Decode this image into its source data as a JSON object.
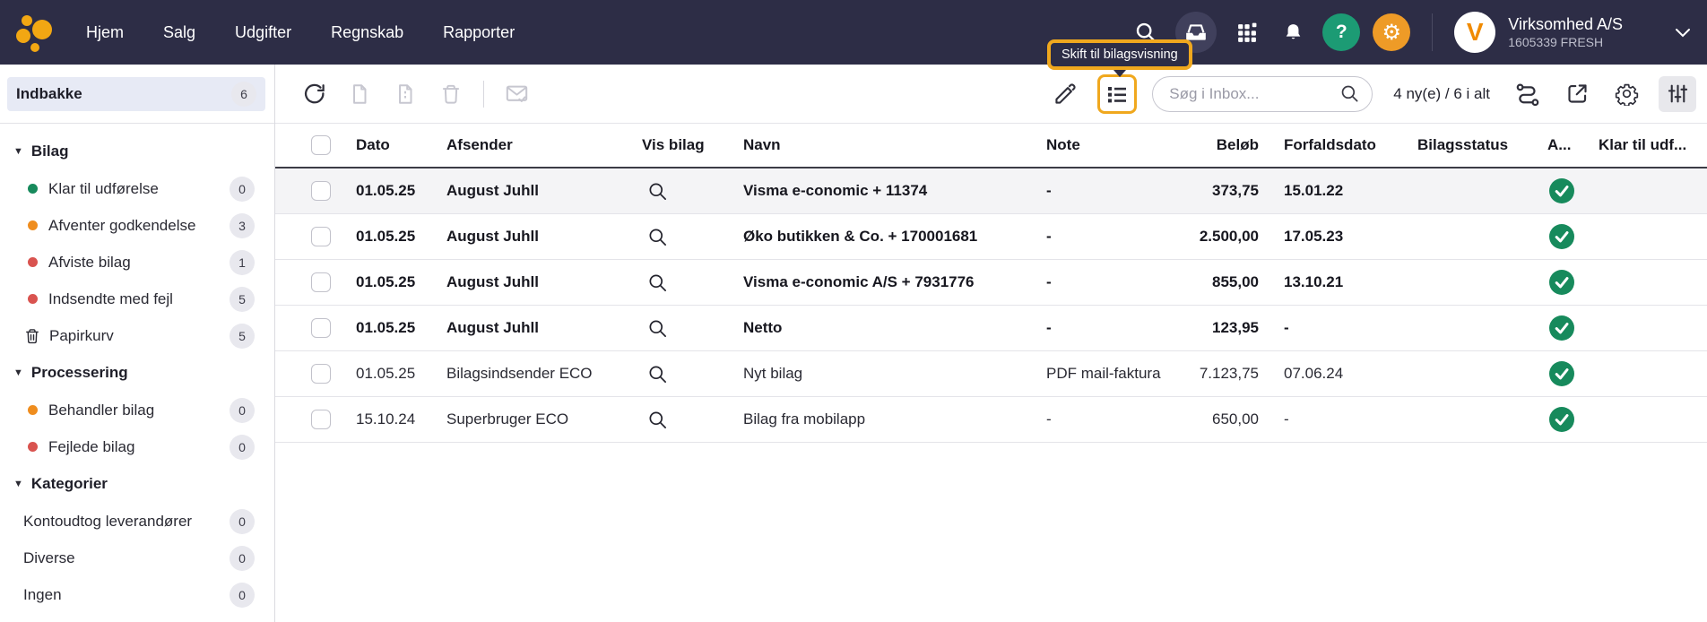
{
  "topbar": {
    "nav": [
      "Hjem",
      "Salg",
      "Udgifter",
      "Regnskab",
      "Rapporter"
    ],
    "help_glyph": "?",
    "settings_glyph": "⚙",
    "avatar_letter": "V",
    "company": {
      "name": "Virksomhed A/S",
      "id": "1605339 FRESH"
    }
  },
  "tooltip": {
    "text": "Skift til bilagsvisning"
  },
  "toolbar": {
    "search": {
      "placeholder": "Søg i Inbox..."
    },
    "count_text": "4 ny(e) / 6 i alt"
  },
  "sidebar": {
    "inbox": {
      "label": "Indbakke",
      "count": "6"
    },
    "sections": [
      {
        "title": "Bilag",
        "items": [
          {
            "label": "Klar til udførelse",
            "count": "0",
            "marker": "green-dot"
          },
          {
            "label": "Afventer godkendelse",
            "count": "3",
            "marker": "orange-dot"
          },
          {
            "label": "Afviste bilag",
            "count": "1",
            "marker": "red-dot"
          },
          {
            "label": "Indsendte med fejl",
            "count": "5",
            "marker": "red-dot"
          },
          {
            "label": "Papirkurv",
            "count": "5",
            "marker": "trash-icon"
          }
        ]
      },
      {
        "title": "Processering",
        "items": [
          {
            "label": "Behandler bilag",
            "count": "0",
            "marker": "orange-dot"
          },
          {
            "label": "Fejlede bilag",
            "count": "0",
            "marker": "red-dot"
          }
        ]
      },
      {
        "title": "Kategorier",
        "items": [
          {
            "label": "Kontoudtog leverandører",
            "count": "0",
            "marker": "none"
          },
          {
            "label": "Diverse",
            "count": "0",
            "marker": "none"
          },
          {
            "label": "Ingen",
            "count": "0",
            "marker": "none"
          }
        ]
      }
    ]
  },
  "table": {
    "headers": [
      "Dato",
      "Afsender",
      "Vis bilag",
      "Navn",
      "Note",
      "Beløb",
      "Forfaldsdato",
      "Bilagsstatus",
      "A...",
      "Klar til udf..."
    ],
    "rows": [
      {
        "dato": "01.05.25",
        "afsender": "August Juhll",
        "navn": "Visma e-conomic + 11374",
        "note": "-",
        "belob": "373,75",
        "forfaldsdato": "15.01.22",
        "bilagsstatus": "",
        "approved": true,
        "unread": true,
        "highlighted": true
      },
      {
        "dato": "01.05.25",
        "afsender": "August Juhll",
        "navn": "Øko butikken & Co. + 170001681",
        "note": "-",
        "belob": "2.500,00",
        "forfaldsdato": "17.05.23",
        "bilagsstatus": "",
        "approved": true,
        "unread": true,
        "highlighted": false
      },
      {
        "dato": "01.05.25",
        "afsender": "August Juhll",
        "navn": "Visma e-conomic A/S + 7931776",
        "note": "-",
        "belob": "855,00",
        "forfaldsdato": "13.10.21",
        "bilagsstatus": "",
        "approved": true,
        "unread": true,
        "highlighted": false
      },
      {
        "dato": "01.05.25",
        "afsender": "August Juhll",
        "navn": "Netto",
        "note": "-",
        "belob": "123,95",
        "forfaldsdato": "-",
        "bilagsstatus": "",
        "approved": true,
        "unread": true,
        "highlighted": false
      },
      {
        "dato": "01.05.25",
        "afsender": "Bilagsindsender ECO",
        "navn": "Nyt bilag",
        "note": "PDF mail-faktura",
        "belob": "7.123,75",
        "forfaldsdato": "07.06.24",
        "bilagsstatus": "",
        "approved": true,
        "unread": false,
        "highlighted": false
      },
      {
        "dato": "15.10.24",
        "afsender": "Superbruger ECO",
        "navn": "Bilag fra mobilapp",
        "note": "-",
        "belob": "650,00",
        "forfaldsdato": "-",
        "bilagsstatus": "",
        "approved": true,
        "unread": false,
        "highlighted": false
      }
    ]
  },
  "colors": {
    "topbar_bg": "#2D2D46",
    "accent_orange": "#F0A81E",
    "logo_orange": "#F2A713",
    "help_green": "#1C9B74",
    "settings_orange": "#EE9B27",
    "check_green": "#178A5C",
    "dot_green": "#178A5C",
    "dot_orange": "#EF8D1E",
    "dot_red": "#D9534F",
    "selected_item_bg": "#E7EAF5",
    "highlighted_row_bg": "#F4F4F6"
  }
}
